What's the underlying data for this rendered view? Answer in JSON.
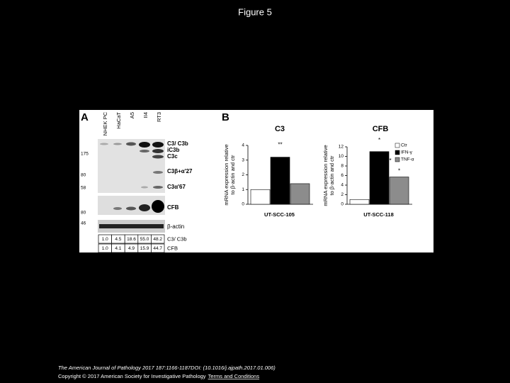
{
  "header": {
    "title": "Figure 5"
  },
  "panel_a": {
    "label": "A",
    "lanes": [
      "NHEK PC",
      "HaCaT",
      "A5",
      "II4",
      "RT3"
    ],
    "markers": [
      "175",
      "80",
      "58",
      "80",
      "46"
    ],
    "bands": [
      "C3/ C3b",
      "iC3b",
      "C3c",
      "C3β+α'27",
      "C3α'67",
      "CFB",
      "β-actin"
    ],
    "table": {
      "rows": [
        {
          "label": "C3/ C3b",
          "cells": [
            "1.0",
            "4.5",
            "18.6",
            "55.0",
            "48.2"
          ]
        },
        {
          "label": "CFB",
          "cells": [
            "1.0",
            "4.1",
            "4.9",
            "15.9",
            "44.7"
          ]
        }
      ]
    }
  },
  "panel_b": {
    "label": "B"
  },
  "chart_data": [
    {
      "type": "bar",
      "title": "C3",
      "y_label": [
        "mRNA expression relative",
        "to β-actin and ctr"
      ],
      "categories": [
        "UT-SCC-105"
      ],
      "series": [
        {
          "name": "Ctr",
          "color": "#ffffff",
          "values": [
            1
          ]
        },
        {
          "name": "IFN-γ",
          "color": "#000000",
          "values": [
            3.2
          ]
        },
        {
          "name": "TNF-α",
          "color": "#8c8c8c",
          "values": [
            1.4
          ]
        }
      ],
      "ylim": [
        0,
        4
      ],
      "yticks": [
        0,
        1,
        2,
        3,
        4
      ],
      "legend": false,
      "annotations": [
        "**"
      ]
    },
    {
      "type": "bar",
      "title": "CFB",
      "y_label": [
        "mRNA expression relative",
        "to β-actin and ctr"
      ],
      "categories": [
        "UT-SCC-118"
      ],
      "series": [
        {
          "name": "Ctr",
          "color": "#ffffff",
          "values": [
            1
          ]
        },
        {
          "name": "IFN-γ",
          "color": "#000000",
          "values": [
            11
          ]
        },
        {
          "name": "TNF-α",
          "color": "#8c8c8c",
          "values": [
            5.7
          ]
        }
      ],
      "ylim": [
        0,
        12
      ],
      "yticks": [
        0,
        2,
        4,
        6,
        8,
        10,
        12
      ],
      "legend": "upper right",
      "annotations": [
        "*",
        "**",
        "*"
      ]
    }
  ],
  "footer": {
    "citation": "The American Journal of Pathology 2017 187:1166-1187DOI: (10.1016/j.ajpath.2017.01.006)",
    "copyright": "Copyright © 2017 American Society for Investigative Pathology",
    "link": "Terms and Conditions"
  }
}
